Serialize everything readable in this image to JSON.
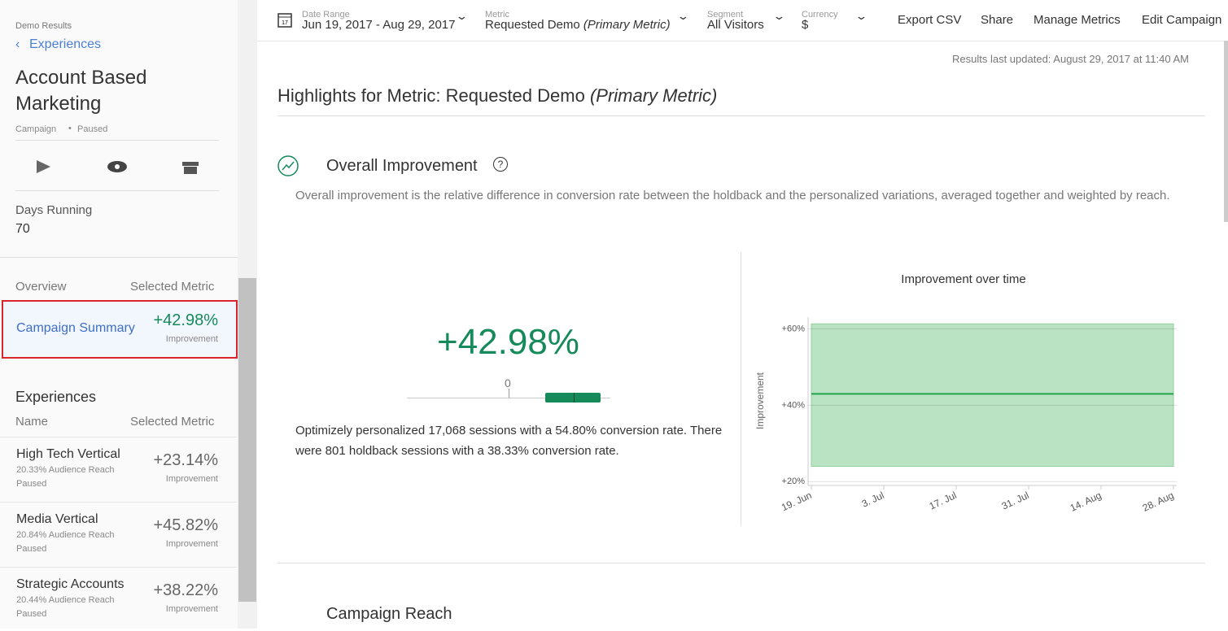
{
  "sidebar": {
    "breadcrumb": "Demo Results",
    "back": "Experiences",
    "title": "Account Based Marketing",
    "type": "Campaign",
    "status": "Paused",
    "days_label": "Days Running",
    "days": "70",
    "overview_header": [
      "Overview",
      "Selected Metric"
    ],
    "summary": {
      "name": "Campaign Summary",
      "value": "+42.98%",
      "label": "Improvement"
    },
    "experiences_title": "Experiences",
    "experiences_header": [
      "Name",
      "Selected Metric"
    ],
    "experiences": [
      {
        "name": "High Tech Vertical",
        "reach": "20.33% Audience Reach",
        "status": "Paused",
        "value": "+23.14%",
        "label": "Improvement"
      },
      {
        "name": "Media Vertical",
        "reach": "20.84% Audience Reach",
        "status": "Paused",
        "value": "+45.82%",
        "label": "Improvement"
      },
      {
        "name": "Strategic Accounts",
        "reach": "20.44% Audience Reach",
        "status": "Paused",
        "value": "+38.22%",
        "label": "Improvement"
      }
    ]
  },
  "toolbar": {
    "filters": [
      {
        "label": "Date Range",
        "value": "Jun 19, 2017 - Aug 29, 2017"
      },
      {
        "label": "Metric",
        "value": "Requested Demo",
        "suffix": "(Primary Metric)"
      },
      {
        "label": "Segment",
        "value": "All Visitors"
      },
      {
        "label": "Currency",
        "value": "$"
      }
    ],
    "actions": [
      "Export CSV",
      "Share",
      "Manage Metrics",
      "Edit Campaign"
    ]
  },
  "main": {
    "updated": "Results last updated: August 29, 2017 at 11:40 AM",
    "heading": "Highlights for Metric: Requested Demo",
    "heading_suffix": "(Primary Metric)",
    "section_title": "Overall Improvement",
    "description": "Overall improvement is the relative difference in conversion rate between the holdback and the personalized variations, averaged together and weighted by reach.",
    "big_value": "+42.98%",
    "zero": "0",
    "summary": "Optimizely personalized 17,068 sessions with a 54.80% conversion rate. There were 801 holdback sessions with a 38.33% conversion rate.",
    "next_section": "Campaign Reach"
  },
  "chart_data": {
    "type": "line",
    "title": "Improvement over time",
    "y_label": "Improvement",
    "categories": [
      "19. Jun",
      "3. Jul",
      "17. Jul",
      "31. Jul",
      "14. Aug",
      "28. Aug"
    ],
    "values": [
      42.98,
      42.98,
      42.98,
      42.98,
      42.98,
      42.98
    ],
    "band": {
      "lower": [
        24,
        24,
        24,
        24,
        24,
        24
      ],
      "upper": [
        61.3,
        61.3,
        61.3,
        61.3,
        61.3,
        61.3
      ]
    },
    "color": "#1fa34a",
    "band_color": "#b9e3c3",
    "ylim": [
      19,
      62
    ],
    "yticks": [
      {
        "value": 20,
        "label": "+20%"
      },
      {
        "value": 40,
        "label": "+40%"
      },
      {
        "value": 60,
        "label": "+60%"
      }
    ],
    "grid": true
  }
}
